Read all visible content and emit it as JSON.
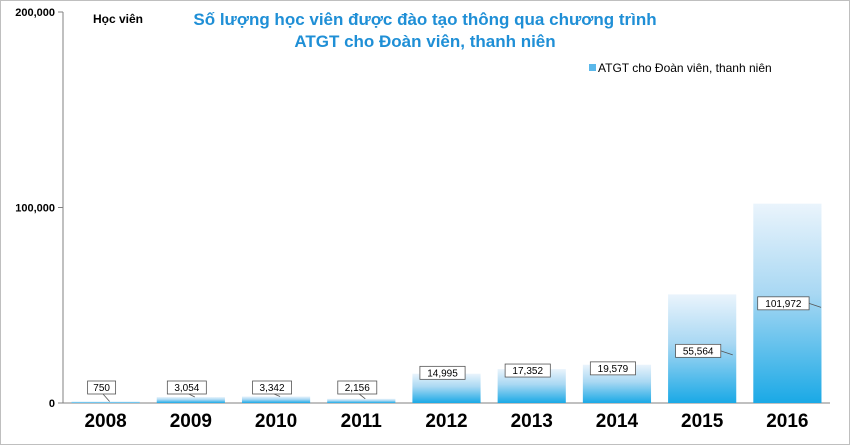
{
  "chart_data": {
    "type": "bar",
    "title_lines": [
      "Số lượng học viên được đào tạo thông qua chương trình",
      "ATGT cho Đoàn viên, thanh niên"
    ],
    "ylabel": "Học viên",
    "xlabel": "",
    "categories": [
      "2008",
      "2009",
      "2010",
      "2011",
      "2012",
      "2013",
      "2014",
      "2015",
      "2016"
    ],
    "series": [
      {
        "name": "ATGT cho Đoàn viên, thanh niên",
        "values": [
          750,
          3054,
          3342,
          2156,
          14995,
          17352,
          19579,
          55564,
          101972
        ],
        "data_labels": [
          "750",
          "3,054",
          "3,342",
          "2,156",
          "14,995",
          "17,352",
          "19,579",
          "55,564",
          "101,972"
        ]
      }
    ],
    "ylim": [
      0,
      200000
    ],
    "yticks": [
      0,
      100000,
      200000
    ],
    "ytick_labels": [
      "0",
      "100,000",
      "200,000"
    ],
    "grid": false,
    "legend_position": "top-right",
    "colors": {
      "bar_top": "#eaf4fc",
      "bar_bottom": "#1aa9e6",
      "title": "#1f8fd6",
      "legend_marker": "#5bb8ea"
    }
  }
}
